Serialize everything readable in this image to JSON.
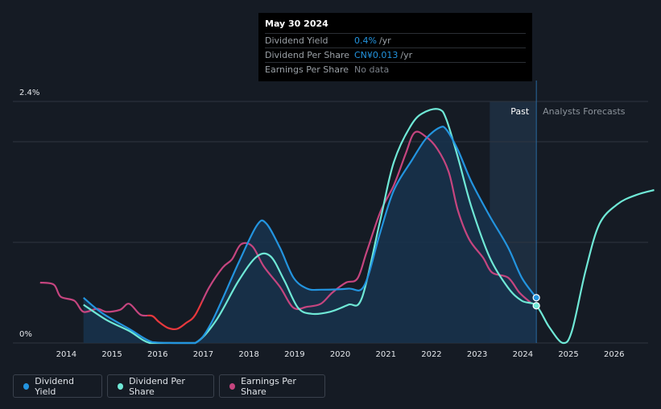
{
  "tooltip": {
    "date": "May 30 2024",
    "rows": [
      {
        "label": "Dividend Yield",
        "value": "0.4%",
        "unit": "/yr",
        "color": "#2394df"
      },
      {
        "label": "Dividend Per Share",
        "value": "CN¥0.013",
        "unit": "/yr",
        "color": "#2394df"
      },
      {
        "label": "Earnings Per Share",
        "value": "No data",
        "unit": "",
        "color": "#7a8088"
      }
    ]
  },
  "colors": {
    "background": "#151b24",
    "dividend_yield": "#2394df",
    "dividend_per_share": "#6fe8d6",
    "earnings_per_share": "#c5457f",
    "earnings_negative": "#e8383d",
    "grid": "#2e3540"
  },
  "chart_data": {
    "type": "line",
    "title": "",
    "y_tick_labels": {
      "top": "2.4%",
      "bottom": "0%"
    },
    "ylim": [
      0,
      2.4
    ],
    "xlim": [
      2013.5,
      2027.0
    ],
    "x_ticks": [
      2014,
      2015,
      2016,
      2017,
      2018,
      2019,
      2020,
      2021,
      2022,
      2023,
      2024,
      2025,
      2026
    ],
    "x_tick_labels": [
      "2014",
      "2015",
      "2016",
      "2017",
      "2018",
      "2019",
      "2020",
      "2021",
      "2022",
      "2023",
      "2024",
      "2025",
      "2026"
    ],
    "past_label": "Past",
    "forecast_label": "Analysts Forecasts",
    "past_band_start": 2023.4,
    "now": 2024.42,
    "series": [
      {
        "name": "Dividend Yield",
        "color": "#2394df",
        "segments": [
          [
            [
              2014.5,
              0.45
            ],
            [
              2014.9,
              0.3
            ],
            [
              2015.5,
              0.14
            ],
            [
              2016.0,
              0.01
            ],
            [
              2016.5,
              0.0
            ],
            [
              2016.95,
              0.0
            ],
            [
              2017.3,
              0.2
            ],
            [
              2017.9,
              0.8
            ],
            [
              2018.3,
              1.17
            ],
            [
              2018.5,
              1.19
            ],
            [
              2018.8,
              0.95
            ],
            [
              2019.1,
              0.65
            ],
            [
              2019.4,
              0.54
            ],
            [
              2019.7,
              0.53
            ],
            [
              2020.3,
              0.54
            ],
            [
              2020.65,
              0.57
            ],
            [
              2021.0,
              1.1
            ],
            [
              2021.3,
              1.52
            ],
            [
              2021.7,
              1.82
            ],
            [
              2022.0,
              2.03
            ],
            [
              2022.3,
              2.14
            ],
            [
              2022.45,
              2.12
            ],
            [
              2022.7,
              1.92
            ],
            [
              2023.0,
              1.6
            ],
            [
              2023.4,
              1.26
            ],
            [
              2023.8,
              0.95
            ],
            [
              2024.1,
              0.65
            ],
            [
              2024.42,
              0.45
            ]
          ]
        ]
      },
      {
        "name": "Dividend Per Share",
        "color": "#6fe8d6",
        "segments": [
          [
            [
              2014.5,
              0.38
            ],
            [
              2015.0,
              0.23
            ],
            [
              2015.5,
              0.12
            ],
            [
              2015.95,
              0.0
            ],
            [
              2016.5,
              0.0
            ],
            [
              2016.95,
              0.0
            ],
            [
              2017.4,
              0.22
            ],
            [
              2017.9,
              0.62
            ],
            [
              2018.3,
              0.86
            ],
            [
              2018.6,
              0.86
            ],
            [
              2018.9,
              0.62
            ],
            [
              2019.2,
              0.35
            ],
            [
              2019.5,
              0.29
            ],
            [
              2019.9,
              0.31
            ],
            [
              2020.3,
              0.38
            ],
            [
              2020.6,
              0.45
            ],
            [
              2021.0,
              1.22
            ],
            [
              2021.3,
              1.8
            ],
            [
              2021.7,
              2.18
            ],
            [
              2022.0,
              2.3
            ],
            [
              2022.3,
              2.32
            ],
            [
              2022.45,
              2.22
            ],
            [
              2022.7,
              1.85
            ],
            [
              2023.0,
              1.35
            ],
            [
              2023.4,
              0.85
            ],
            [
              2023.8,
              0.55
            ],
            [
              2024.1,
              0.42
            ],
            [
              2024.42,
              0.37
            ],
            [
              2024.7,
              0.16
            ],
            [
              2025.0,
              0.0
            ],
            [
              2025.2,
              0.12
            ],
            [
              2025.5,
              0.72
            ],
            [
              2025.8,
              1.18
            ],
            [
              2026.2,
              1.38
            ],
            [
              2026.6,
              1.47
            ],
            [
              2027.0,
              1.52
            ]
          ]
        ]
      },
      {
        "name": "Earnings Per Share",
        "color": "#c5457f",
        "segments": [
          [
            [
              2013.55,
              0.6
            ],
            [
              2013.85,
              0.58
            ],
            [
              2014.0,
              0.46
            ],
            [
              2014.3,
              0.42
            ],
            [
              2014.5,
              0.31
            ],
            [
              2014.8,
              0.34
            ],
            [
              2015.0,
              0.31
            ],
            [
              2015.3,
              0.33
            ],
            [
              2015.5,
              0.39
            ],
            [
              2015.75,
              0.28
            ],
            [
              2016.0,
              0.27
            ],
            [
              2016.15,
              0.21
            ],
            [
              2016.35,
              0.15
            ],
            [
              2016.55,
              0.14
            ],
            [
              2016.75,
              0.2
            ],
            [
              2016.95,
              0.28
            ],
            [
              2017.25,
              0.55
            ],
            [
              2017.55,
              0.75
            ],
            [
              2017.75,
              0.83
            ],
            [
              2017.95,
              0.98
            ],
            [
              2018.2,
              0.96
            ],
            [
              2018.45,
              0.76
            ],
            [
              2018.8,
              0.56
            ],
            [
              2019.1,
              0.35
            ],
            [
              2019.4,
              0.36
            ],
            [
              2019.7,
              0.39
            ],
            [
              2019.95,
              0.5
            ],
            [
              2020.25,
              0.6
            ],
            [
              2020.5,
              0.64
            ],
            [
              2020.7,
              0.9
            ],
            [
              2021.0,
              1.3
            ],
            [
              2021.3,
              1.57
            ],
            [
              2021.55,
              1.87
            ],
            [
              2021.75,
              2.09
            ],
            [
              2022.0,
              2.05
            ],
            [
              2022.25,
              1.93
            ],
            [
              2022.5,
              1.7
            ],
            [
              2022.7,
              1.32
            ],
            [
              2022.95,
              1.03
            ],
            [
              2023.25,
              0.85
            ],
            [
              2023.45,
              0.7
            ],
            [
              2023.8,
              0.65
            ],
            [
              2024.05,
              0.5
            ],
            [
              2024.3,
              0.4
            ]
          ]
        ],
        "negative_range": [
          2015.9,
          2017.1
        ]
      }
    ],
    "markers": [
      {
        "series": "Dividend Yield",
        "x": 2024.42,
        "y": 0.45
      },
      {
        "series": "Dividend Per Share",
        "x": 2024.42,
        "y": 0.37
      }
    ],
    "legend": [
      "Dividend Yield",
      "Dividend Per Share",
      "Earnings Per Share"
    ]
  }
}
